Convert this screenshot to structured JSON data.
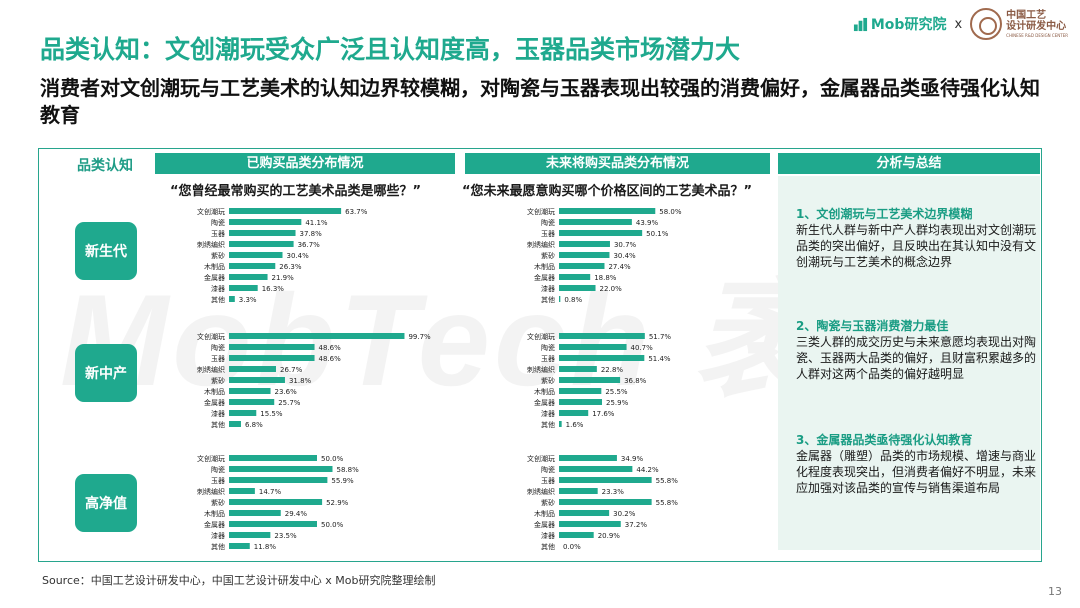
{
  "title": "品类认知：文创潮玩受众广泛且认知度高，玉器品类市场潜力大",
  "subtitle": "消费者对文创潮玩与工艺美术的认知边界较模糊，对陶瓷与玉器表现出较强的消费偏好，金属器品类亟待强化认知教育",
  "brand": {
    "mob": "Mob研究院",
    "separator": "x",
    "partner_cn_1": "中国工艺",
    "partner_cn_2": "设计研发中心",
    "partner_en": "CHINESE R&D DESIGN CENTER"
  },
  "watermark": "MobTech 袤博",
  "row_header": "品类认知",
  "col_headers": [
    "已购买品类分布情况",
    "未来将购买品类分布情况"
  ],
  "questions": [
    "“您曾经最常购买的工艺美术品类是哪些？”",
    "“您未来最愿意购买哪个价格区间的工艺美术品？”"
  ],
  "segments": [
    "新生代",
    "新中产",
    "高净值"
  ],
  "colors": {
    "accent": "#1fa98e",
    "bar": "#1fa98e",
    "panel_bg": "#eaf5f1"
  },
  "chart_data": [
    {
      "type": "bar",
      "orientation": "horizontal",
      "segment": "新生代",
      "group": "已购买品类分布情况",
      "categories": [
        "文创潮玩",
        "陶瓷",
        "玉器",
        "刺绣编织",
        "紫砂",
        "木制品",
        "金属器",
        "漆器",
        "其他"
      ],
      "values": [
        63.7,
        41.1,
        37.8,
        36.7,
        30.4,
        26.3,
        21.9,
        16.3,
        3.3
      ],
      "labels": [
        "63.7%",
        "41.1%",
        "37.8%",
        "36.7%",
        "30.4%",
        "26.3%",
        "21.9%",
        "16.3%",
        "3.3%"
      ]
    },
    {
      "type": "bar",
      "orientation": "horizontal",
      "segment": "新生代",
      "group": "未来将购买品类分布情况",
      "categories": [
        "文创潮玩",
        "陶瓷",
        "玉器",
        "刺绣编织",
        "紫砂",
        "木制品",
        "金属器",
        "漆器",
        "其他"
      ],
      "values": [
        58.0,
        43.9,
        50.1,
        30.7,
        30.4,
        27.4,
        18.8,
        22.0,
        0.8
      ],
      "labels": [
        "58.0%",
        "43.9%",
        "50.1%",
        "30.7%",
        "30.4%",
        "27.4%",
        "18.8%",
        "22.0%",
        "0.8%"
      ]
    },
    {
      "type": "bar",
      "orientation": "horizontal",
      "segment": "新中产",
      "group": "已购买品类分布情况",
      "categories": [
        "文创潮玩",
        "陶瓷",
        "玉器",
        "刺绣编织",
        "紫砂",
        "木制品",
        "金属器",
        "漆器",
        "其他"
      ],
      "values": [
        99.7,
        48.6,
        48.6,
        26.7,
        31.8,
        23.6,
        25.7,
        15.5,
        6.8
      ],
      "labels": [
        "99.7%",
        "48.6%",
        "48.6%",
        "26.7%",
        "31.8%",
        "23.6%",
        "25.7%",
        "15.5%",
        "6.8%"
      ]
    },
    {
      "type": "bar",
      "orientation": "horizontal",
      "segment": "新中产",
      "group": "未来将购买品类分布情况",
      "categories": [
        "文创潮玩",
        "陶瓷",
        "玉器",
        "刺绣编织",
        "紫砂",
        "木制品",
        "金属器",
        "漆器",
        "其他"
      ],
      "values": [
        51.7,
        40.7,
        51.4,
        22.8,
        36.8,
        25.5,
        25.9,
        17.6,
        1.6
      ],
      "labels": [
        "51.7%",
        "40.7%",
        "51.4%",
        "22.8%",
        "36.8%",
        "25.5%",
        "25.9%",
        "17.6%",
        "1.6%"
      ]
    },
    {
      "type": "bar",
      "orientation": "horizontal",
      "segment": "高净值",
      "group": "已购买品类分布情况",
      "categories": [
        "文创潮玩",
        "陶瓷",
        "玉器",
        "刺绣编织",
        "紫砂",
        "木制品",
        "金属器",
        "漆器",
        "其他"
      ],
      "values": [
        50.0,
        58.8,
        55.9,
        14.7,
        52.9,
        29.4,
        50.0,
        23.5,
        11.8
      ],
      "labels": [
        "50.0%",
        "58.8%",
        "55.9%",
        "14.7%",
        "52.9%",
        "29.4%",
        "50.0%",
        "23.5%",
        "11.8%"
      ]
    },
    {
      "type": "bar",
      "orientation": "horizontal",
      "segment": "高净值",
      "group": "未来将购买品类分布情况",
      "categories": [
        "文创潮玩",
        "陶瓷",
        "玉器",
        "刺绣编织",
        "紫砂",
        "木制品",
        "金属器",
        "漆器",
        "其他"
      ],
      "values": [
        34.9,
        44.2,
        55.8,
        23.3,
        55.8,
        30.2,
        37.2,
        20.9,
        0.0
      ],
      "labels": [
        "34.9%",
        "44.2%",
        "55.8%",
        "23.3%",
        "55.8%",
        "30.2%",
        "37.2%",
        "20.9%",
        "0.0%"
      ]
    }
  ],
  "analysis": {
    "header": "分析与总结",
    "points": [
      {
        "title": "1、文创潮玩与工艺美术边界模糊",
        "body": "新生代人群与新中产人群均表现出对文创潮玩品类的突出偏好，且反映出在其认知中没有文创潮玩与工艺美术的概念边界"
      },
      {
        "title": "2、陶瓷与玉器消费潜力最佳",
        "body": "三类人群的成交历史与未来意愿均表现出对陶瓷、玉器两大品类的偏好，且财富积累越多的人群对这两个品类的偏好越明显"
      },
      {
        "title": "3、金属器品类亟待强化认知教育",
        "body": "金属器（雕塑）品类的市场规模、增速与商业化程度表现突出，但消费者偏好不明显，未来应加强对该品类的宣传与销售渠道布局"
      }
    ]
  },
  "source": "Source：中国工艺设计研发中心，中国工艺设计研发中心 x Mob研究院整理绘制",
  "page_number": "13"
}
